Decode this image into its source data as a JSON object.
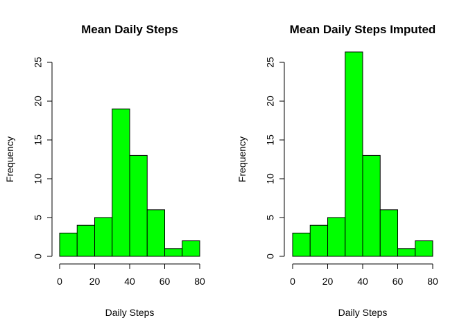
{
  "chart_data": [
    {
      "type": "histogram",
      "title": "Mean Daily Steps",
      "xlabel": "Daily Steps",
      "ylabel": "Frequency",
      "bin_edges": [
        0,
        10,
        20,
        30,
        40,
        50,
        60,
        70,
        80
      ],
      "values": [
        3,
        4,
        5,
        19,
        13,
        6,
        1,
        2
      ],
      "xlim": [
        0,
        80
      ],
      "ylim": [
        0,
        25
      ],
      "xticks": [
        0,
        20,
        40,
        60,
        80
      ],
      "yticks": [
        0,
        5,
        10,
        15,
        20,
        25
      ],
      "bar_color": "#00ff00",
      "grid": false
    },
    {
      "type": "histogram",
      "title": "Mean Daily Steps Imputed",
      "xlabel": "Daily Steps",
      "ylabel": "Frequency",
      "bin_edges": [
        0,
        10,
        20,
        30,
        40,
        50,
        60,
        70,
        80
      ],
      "values": [
        3,
        4,
        5,
        27,
        13,
        6,
        1,
        2
      ],
      "xlim": [
        0,
        80
      ],
      "ylim": [
        0,
        25
      ],
      "xticks": [
        0,
        20,
        40,
        60,
        80
      ],
      "yticks": [
        0,
        5,
        10,
        15,
        20,
        25
      ],
      "bar_color": "#00ff00",
      "grid": false
    }
  ]
}
